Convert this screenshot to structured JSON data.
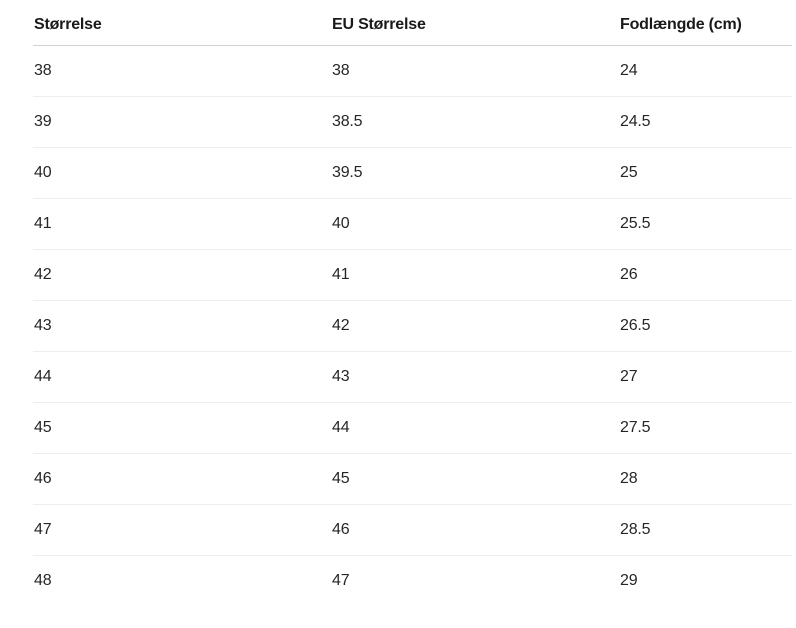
{
  "page": {
    "background": "#ffffff"
  },
  "table": {
    "name": "shoe-size-conversion",
    "columns": [
      {
        "id": "storrelse",
        "label": "Størrelse"
      },
      {
        "id": "eu_storrelse",
        "label": "EU Størrelse"
      },
      {
        "id": "fodlaengde_cm",
        "label": "Fodlængde (cm)"
      }
    ],
    "rows": [
      [
        "38",
        "38",
        "24"
      ],
      [
        "39",
        "38.5",
        "24.5"
      ],
      [
        "40",
        "39.5",
        "25"
      ],
      [
        "41",
        "40",
        "25.5"
      ],
      [
        "42",
        "41",
        "26"
      ],
      [
        "43",
        "42",
        "26.5"
      ],
      [
        "44",
        "43",
        "27"
      ],
      [
        "45",
        "44",
        "27.5"
      ],
      [
        "46",
        "45",
        "28"
      ],
      [
        "47",
        "46",
        "28.5"
      ],
      [
        "48",
        "47",
        "29"
      ]
    ],
    "colors": {
      "header_text": "#1a1a1a",
      "cell_text": "#262626",
      "header_divider": "#d2d2d2",
      "row_divider": "#eeeeee"
    }
  }
}
